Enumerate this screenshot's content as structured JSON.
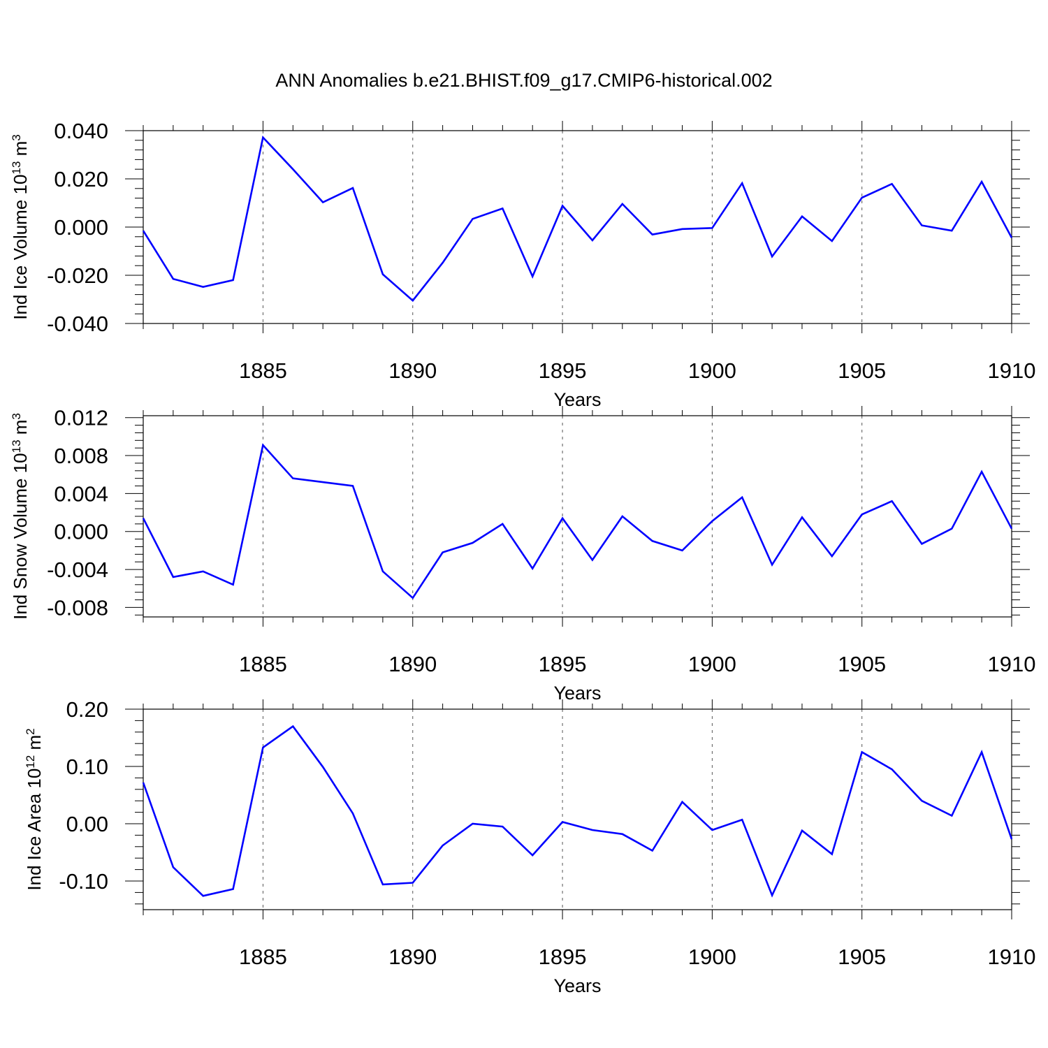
{
  "figure": {
    "title": "ANN Anomalies b.e21.BHIST.f09_g17.CMIP6-historical.002"
  },
  "colors": {
    "line": "#0000ff",
    "axis": "#000000",
    "grid": "#555555",
    "background": "#ffffff"
  },
  "chart_data": [
    {
      "type": "line",
      "ylabel": "Ind Ice Volume 10",
      "ylabel_exp": "13",
      "ylabel_unit": " m",
      "ylabel_unit_exp": "3",
      "xlabel": "Years",
      "xlim": [
        1881,
        1910
      ],
      "ylim": [
        -0.04,
        0.04
      ],
      "yticks": [
        -0.04,
        -0.02,
        0.0,
        0.02,
        0.04
      ],
      "ytick_labels": [
        "-0.040",
        "-0.020",
        "0.000",
        "0.020",
        "0.040"
      ],
      "xticks": [
        1885,
        1890,
        1895,
        1900,
        1905,
        1910
      ],
      "xtick_labels": [
        "1885",
        "1890",
        "1895",
        "1900",
        "1905",
        "1910"
      ],
      "grid": "vertical dashed at major x ticks",
      "series": [
        {
          "x": [
            1881,
            1882,
            1883,
            1884,
            1885,
            1886,
            1887,
            1888,
            1889,
            1890,
            1891,
            1892,
            1893,
            1894,
            1895,
            1896,
            1897,
            1898,
            1899,
            1900,
            1901,
            1902,
            1903,
            1904,
            1905,
            1906,
            1907,
            1908,
            1909,
            1910
          ],
          "values": [
            -0.0015,
            -0.0215,
            -0.0248,
            -0.022,
            0.0372,
            0.024,
            0.0103,
            0.0162,
            -0.0196,
            -0.0305,
            -0.0148,
            0.0034,
            0.0077,
            -0.0205,
            0.0088,
            -0.0055,
            0.0096,
            -0.0031,
            -0.0008,
            -0.0004,
            0.0182,
            -0.0122,
            0.0044,
            -0.0058,
            0.0122,
            0.0179,
            0.0007,
            -0.0015,
            0.0188,
            -0.0044
          ]
        }
      ]
    },
    {
      "type": "line",
      "ylabel": "Ind Snow Volume 10",
      "ylabel_exp": "13",
      "ylabel_unit": " m",
      "ylabel_unit_exp": "3",
      "xlabel": "Years",
      "xlim": [
        1881,
        1910
      ],
      "ylim": [
        -0.009,
        0.0122
      ],
      "yticks": [
        -0.008,
        -0.004,
        0.0,
        0.004,
        0.008,
        0.012
      ],
      "ytick_labels": [
        "-0.008",
        "-0.004",
        "0.000",
        "0.004",
        "0.008",
        "0.012"
      ],
      "xticks": [
        1885,
        1890,
        1895,
        1900,
        1905,
        1910
      ],
      "xtick_labels": [
        "1885",
        "1890",
        "1895",
        "1900",
        "1905",
        "1910"
      ],
      "grid": "vertical dashed at major x ticks",
      "series": [
        {
          "x": [
            1881,
            1882,
            1883,
            1884,
            1885,
            1886,
            1887,
            1888,
            1889,
            1890,
            1891,
            1892,
            1893,
            1894,
            1895,
            1896,
            1897,
            1898,
            1899,
            1900,
            1901,
            1902,
            1903,
            1904,
            1905,
            1906,
            1907,
            1908,
            1909,
            1910
          ],
          "values": [
            0.0014,
            -0.0048,
            -0.0042,
            -0.0056,
            0.0091,
            0.0056,
            0.0052,
            0.0048,
            -0.0042,
            -0.007,
            -0.0022,
            -0.0012,
            0.0008,
            -0.0039,
            0.0014,
            -0.003,
            0.0016,
            -0.001,
            -0.002,
            0.0011,
            0.0036,
            -0.0035,
            0.0015,
            -0.0026,
            0.0018,
            0.0032,
            -0.0013,
            0.0003,
            0.0063,
            0.0003
          ]
        }
      ]
    },
    {
      "type": "line",
      "ylabel": "Ind Ice Area 10",
      "ylabel_exp": "12",
      "ylabel_unit": " m",
      "ylabel_unit_exp": "2",
      "xlabel": "Years",
      "xlim": [
        1881,
        1910
      ],
      "ylim": [
        -0.15,
        0.2
      ],
      "yticks": [
        -0.1,
        0.0,
        0.1,
        0.2
      ],
      "ytick_labels": [
        "-0.10",
        "0.00",
        "0.10",
        "0.20"
      ],
      "xticks": [
        1885,
        1890,
        1895,
        1900,
        1905,
        1910
      ],
      "xtick_labels": [
        "1885",
        "1890",
        "1895",
        "1900",
        "1905",
        "1910"
      ],
      "grid": "vertical dashed at major x ticks",
      "series": [
        {
          "x": [
            1881,
            1882,
            1883,
            1884,
            1885,
            1886,
            1887,
            1888,
            1889,
            1890,
            1891,
            1892,
            1893,
            1894,
            1895,
            1896,
            1897,
            1898,
            1899,
            1900,
            1901,
            1902,
            1903,
            1904,
            1905,
            1906,
            1907,
            1908,
            1909,
            1910
          ],
          "values": [
            0.072,
            -0.076,
            -0.126,
            -0.114,
            0.133,
            0.17,
            0.099,
            0.018,
            -0.106,
            -0.103,
            -0.038,
            0.0,
            -0.005,
            -0.055,
            0.003,
            -0.011,
            -0.018,
            -0.047,
            0.038,
            -0.011,
            0.007,
            -0.125,
            -0.012,
            -0.053,
            0.125,
            0.095,
            0.04,
            0.014,
            0.125,
            -0.027
          ]
        }
      ]
    }
  ]
}
